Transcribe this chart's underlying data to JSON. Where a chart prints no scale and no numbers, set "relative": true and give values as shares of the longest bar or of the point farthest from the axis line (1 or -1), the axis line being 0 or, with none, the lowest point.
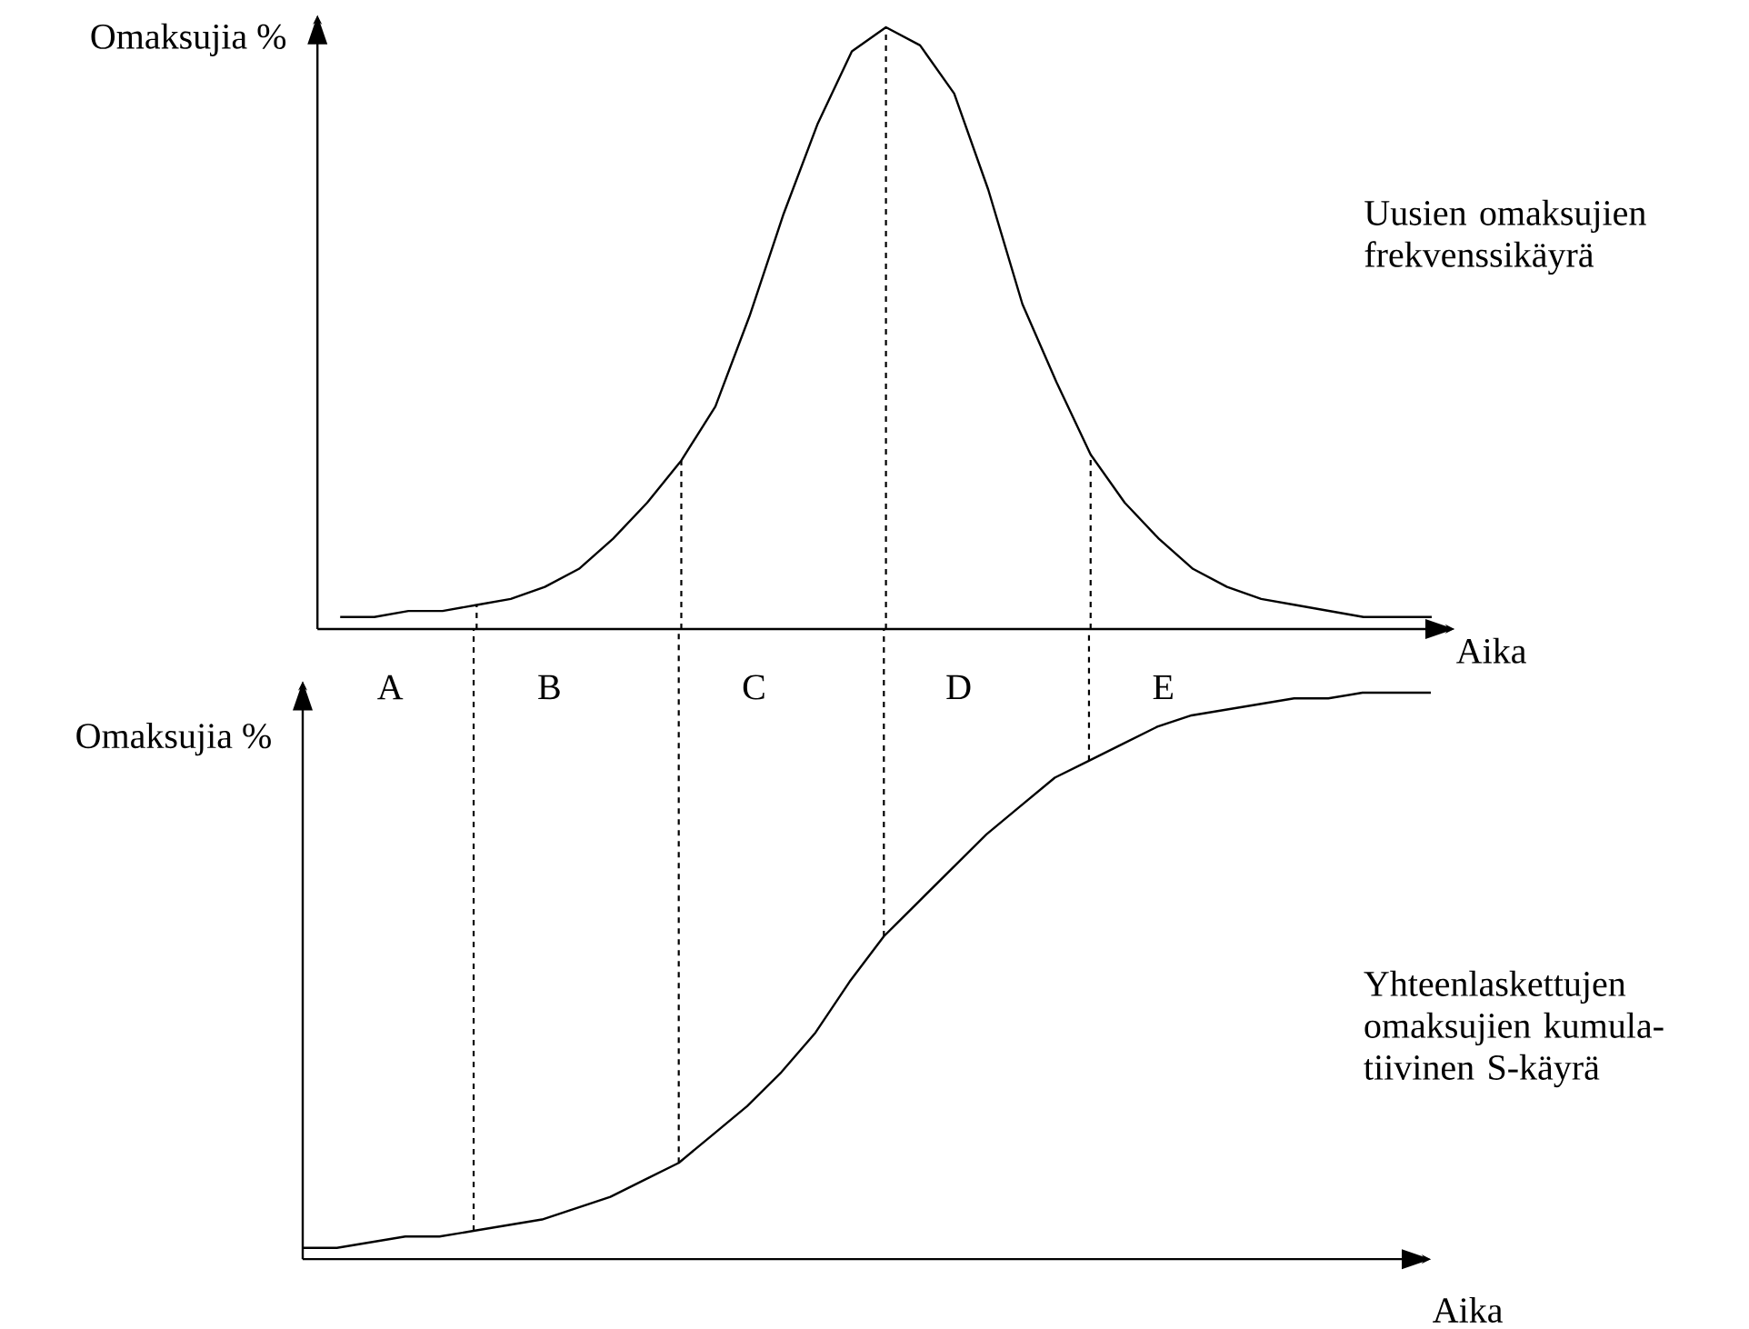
{
  "chart_data": [
    {
      "type": "line",
      "relative": true,
      "ylabel": "Omaksujia %",
      "xlabel": "Aika",
      "tick_labels": false,
      "categories": [
        null,
        null,
        null,
        null,
        null,
        null,
        null,
        null,
        null,
        null,
        null,
        null,
        null,
        null,
        null,
        null,
        null,
        null,
        null,
        null,
        null,
        null,
        null,
        null,
        null,
        null,
        null,
        null,
        null,
        null,
        null,
        null,
        null
      ],
      "series": [
        {
          "name": "Uusien omaksujien frekvenssikäyrä",
          "color": "#000000",
          "values": [
            0.02,
            0.02,
            0.03,
            0.03,
            0.04,
            0.05,
            0.07,
            0.1,
            0.15,
            0.21,
            0.28,
            0.37,
            0.52,
            0.69,
            0.84,
            0.96,
            1,
            0.97,
            0.89,
            0.73,
            0.54,
            0.41,
            0.29,
            0.21,
            0.15,
            0.1,
            0.07,
            0.05,
            0.04,
            0.03,
            0.02,
            0.02,
            0.02
          ]
        }
      ],
      "annotations": [
        "A",
        "B",
        "C",
        "D",
        "E"
      ]
    },
    {
      "type": "line",
      "relative": true,
      "ylabel": "Omaksujia %",
      "xlabel": "Aika",
      "tick_labels": false,
      "categories": [
        null,
        null,
        null,
        null,
        null,
        null,
        null,
        null,
        null,
        null,
        null,
        null,
        null,
        null,
        null,
        null,
        null,
        null,
        null,
        null,
        null,
        null,
        null,
        null,
        null,
        null,
        null,
        null,
        null,
        null,
        null,
        null,
        null,
        null
      ],
      "series": [
        {
          "name": "Yhteenlaskettujen omaksujien kumula-tiivinen S-käyrä",
          "color": "#000000",
          "values": [
            0.02,
            0.02,
            0.03,
            0.04,
            0.04,
            0.05,
            0.06,
            0.07,
            0.09,
            0.11,
            0.14,
            0.17,
            0.22,
            0.27,
            0.33,
            0.4,
            0.49,
            0.57,
            0.63,
            0.69,
            0.75,
            0.8,
            0.85,
            0.88,
            0.91,
            0.94,
            0.96,
            0.97,
            0.98,
            0.99,
            0.99,
            1,
            1,
            1
          ]
        }
      ]
    }
  ]
}
